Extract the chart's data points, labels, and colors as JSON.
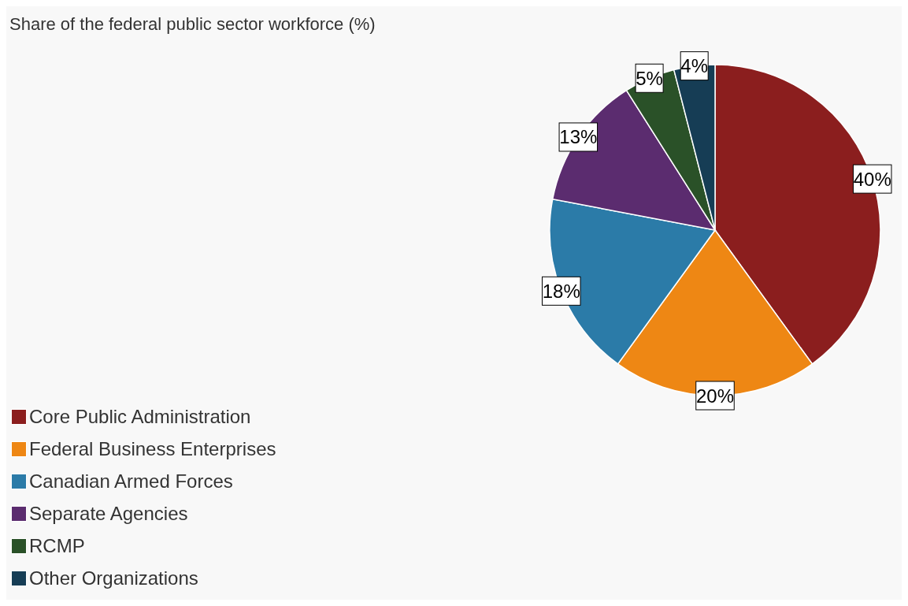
{
  "chart_data": {
    "type": "pie",
    "title": "Share of the federal public sector workforce (%)",
    "categories": [
      "Core Public Administration",
      "Federal Business Enterprises",
      "Canadian Armed Forces",
      "Separate Agencies",
      "RCMP",
      "Other Organizations"
    ],
    "values": [
      40,
      20,
      18,
      13,
      5,
      4
    ],
    "value_labels": [
      "40%",
      "20%",
      "18%",
      "13%",
      "5%",
      "4%"
    ],
    "colors": [
      "#8b1e1e",
      "#ee8714",
      "#2b7ba8",
      "#5b2c6f",
      "#2a5128",
      "#163d55"
    ],
    "legend": "bottom left"
  }
}
